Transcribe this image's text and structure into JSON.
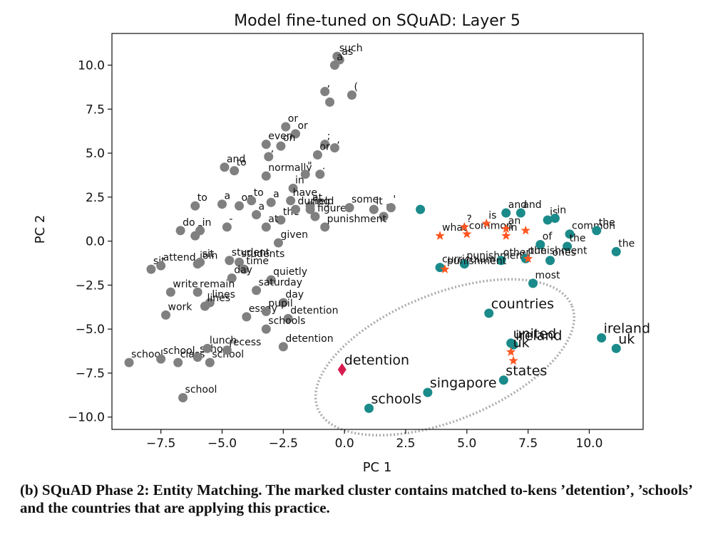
{
  "caption": "(b) SQuAD Phase 2: Entity Matching. The marked cluster contains matched to-kens ’detention’, ’schools’ and the countries that are applying this practice.",
  "chart_data": {
    "type": "scatter",
    "title": "Model fine-tuned on SQuAD: Layer 5",
    "xlabel": "PC 1",
    "ylabel": "PC 2",
    "xlim": [
      -9.5,
      12.2
    ],
    "ylim": [
      -10.7,
      11.8
    ],
    "xticks": [
      -7.5,
      -5.0,
      -2.5,
      0.0,
      2.5,
      5.0,
      7.5,
      10.0
    ],
    "xtick_labels": [
      "−7.5",
      "−5.0",
      "−2.5",
      "0.0",
      "2.5",
      "5.0",
      "7.5",
      "10.0"
    ],
    "yticks": [
      -10.0,
      -7.5,
      -5.0,
      -2.5,
      0.0,
      2.5,
      5.0,
      7.5,
      10.0
    ],
    "ytick_labels": [
      "−10.0",
      "−7.5",
      "−5.0",
      "−2.5",
      "0.0",
      "2.5",
      "5.0",
      "7.5",
      "10.0"
    ],
    "grid": false,
    "colors": {
      "other": "#808080",
      "context": "#1b8a8a",
      "question": "#ff5722",
      "answer": "#d81b4f",
      "ellipse": "#aaaaaa"
    },
    "series": [
      {
        "marker": "circle",
        "color": "#808080",
        "points": [
          {
            "x": -0.3,
            "y": 10.5,
            "label": "such"
          },
          {
            "x": -0.2,
            "y": 10.3,
            "label": "as"
          },
          {
            "x": -0.4,
            "y": 10.0,
            "label": "a"
          },
          {
            "x": -0.8,
            "y": 8.5,
            "label": ","
          },
          {
            "x": 0.3,
            "y": 8.3,
            "label": "("
          },
          {
            "x": -0.6,
            "y": 7.9,
            "label": ""
          },
          {
            "x": -2.4,
            "y": 6.5,
            "label": "or"
          },
          {
            "x": -2.0,
            "y": 6.1,
            "label": "or"
          },
          {
            "x": -3.2,
            "y": 5.5,
            "label": "even"
          },
          {
            "x": -2.6,
            "y": 5.4,
            "label": "on"
          },
          {
            "x": -0.8,
            "y": 5.5,
            "label": ";"
          },
          {
            "x": -1.1,
            "y": 4.9,
            "label": "or"
          },
          {
            "x": -0.4,
            "y": 5.3,
            "label": ","
          },
          {
            "x": -3.1,
            "y": 4.8,
            "label": ","
          },
          {
            "x": -4.9,
            "y": 4.2,
            "label": "and"
          },
          {
            "x": -4.5,
            "y": 4.0,
            "label": "to"
          },
          {
            "x": -3.2,
            "y": 3.7,
            "label": "normally"
          },
          {
            "x": -1.6,
            "y": 3.8,
            "label": "\""
          },
          {
            "x": -1.0,
            "y": 3.8,
            "label": "."
          },
          {
            "x": -2.1,
            "y": 3.0,
            "label": "in"
          },
          {
            "x": -6.1,
            "y": 2.0,
            "label": "to"
          },
          {
            "x": -5.0,
            "y": 2.1,
            "label": "a"
          },
          {
            "x": -4.3,
            "y": 2.0,
            "label": "on"
          },
          {
            "x": -3.8,
            "y": 2.3,
            "label": "to"
          },
          {
            "x": -3.0,
            "y": 2.2,
            "label": "a"
          },
          {
            "x": -2.2,
            "y": 2.3,
            "label": "have"
          },
          {
            "x": -1.4,
            "y": 2.0,
            "label": "at"
          },
          {
            "x": -3.6,
            "y": 1.5,
            "label": "a"
          },
          {
            "x": -2.6,
            "y": 1.2,
            "label": "the"
          },
          {
            "x": -1.4,
            "y": 1.8,
            "label": "held"
          },
          {
            "x": -2.0,
            "y": 1.8,
            "label": "during"
          },
          {
            "x": -1.2,
            "y": 1.4,
            "label": "figures"
          },
          {
            "x": 0.2,
            "y": 1.9,
            "label": "some"
          },
          {
            "x": 1.2,
            "y": 1.8,
            "label": "it"
          },
          {
            "x": 1.6,
            "y": 1.4,
            "label": "''"
          },
          {
            "x": 1.9,
            "y": 1.9,
            "label": "'"
          },
          {
            "x": -6.7,
            "y": 0.6,
            "label": "do"
          },
          {
            "x": -6.1,
            "y": 0.3,
            "label": "a"
          },
          {
            "x": -5.9,
            "y": 0.6,
            "label": "in"
          },
          {
            "x": -4.8,
            "y": 0.8,
            "label": "-"
          },
          {
            "x": -3.2,
            "y": 0.8,
            "label": "at"
          },
          {
            "x": -2.7,
            "y": -0.1,
            "label": "given"
          },
          {
            "x": -0.8,
            "y": 0.8,
            "label": "punishment"
          },
          {
            "x": -7.9,
            "y": -1.6,
            "label": "sit"
          },
          {
            "x": -7.5,
            "y": -1.4,
            "label": "attend"
          },
          {
            "x": -6.0,
            "y": -1.3,
            "label": "join"
          },
          {
            "x": -5.9,
            "y": -1.2,
            "label": "sit"
          },
          {
            "x": -4.7,
            "y": -1.1,
            "label": "student"
          },
          {
            "x": -4.3,
            "y": -1.2,
            "label": "students"
          },
          {
            "x": -4.1,
            "y": -1.6,
            "label": "time"
          },
          {
            "x": -4.6,
            "y": -2.1,
            "label": "day"
          },
          {
            "x": -3.0,
            "y": -2.2,
            "label": "quietly"
          },
          {
            "x": -3.6,
            "y": -2.8,
            "label": "saturday"
          },
          {
            "x": -7.1,
            "y": -2.9,
            "label": "write"
          },
          {
            "x": -6.0,
            "y": -2.9,
            "label": "remain"
          },
          {
            "x": -5.5,
            "y": -3.5,
            "label": "lines"
          },
          {
            "x": -2.5,
            "y": -3.5,
            "label": "day"
          },
          {
            "x": -7.3,
            "y": -4.2,
            "label": "work"
          },
          {
            "x": -5.7,
            "y": -3.7,
            "label": "lines"
          },
          {
            "x": -4.0,
            "y": -4.3,
            "label": "essay"
          },
          {
            "x": -3.2,
            "y": -4.0,
            "label": "pupil"
          },
          {
            "x": -2.3,
            "y": -4.4,
            "label": "detention"
          },
          {
            "x": -3.2,
            "y": -5.0,
            "label": "schools"
          },
          {
            "x": -8.8,
            "y": -6.9,
            "label": "school"
          },
          {
            "x": -7.5,
            "y": -6.7,
            "label": "school"
          },
          {
            "x": -6.8,
            "y": -6.9,
            "label": "class"
          },
          {
            "x": -6.0,
            "y": -6.6,
            "label": "school"
          },
          {
            "x": -5.5,
            "y": -6.9,
            "label": "school"
          },
          {
            "x": -5.6,
            "y": -6.1,
            "label": "lunch"
          },
          {
            "x": -4.8,
            "y": -6.2,
            "label": "recess"
          },
          {
            "x": -2.5,
            "y": -6.0,
            "label": "detention"
          },
          {
            "x": -6.6,
            "y": -8.9,
            "label": "school"
          }
        ]
      },
      {
        "marker": "circle",
        "color": "#1b8a8a",
        "points": [
          {
            "x": 3.1,
            "y": 1.8,
            "label": ""
          },
          {
            "x": 6.6,
            "y": 1.6,
            "label": "and"
          },
          {
            "x": 7.2,
            "y": 1.6,
            "label": "and"
          },
          {
            "x": 8.3,
            "y": 1.2,
            "label": "is"
          },
          {
            "x": 8.6,
            "y": 1.3,
            "label": "in"
          },
          {
            "x": 9.2,
            "y": 0.4,
            "label": "common"
          },
          {
            "x": 10.3,
            "y": 0.6,
            "label": "the"
          },
          {
            "x": 11.1,
            "y": -0.6,
            "label": "the"
          },
          {
            "x": 8.0,
            "y": -0.2,
            "label": "of"
          },
          {
            "x": 9.1,
            "y": -0.3,
            "label": "the"
          },
          {
            "x": 8.4,
            "y": -1.1,
            "label": "ones"
          },
          {
            "x": 7.7,
            "y": -2.4,
            "label": "most"
          },
          {
            "x": 3.9,
            "y": -1.5,
            "label": "curriculum"
          },
          {
            "x": 4.9,
            "y": -1.3,
            "label": "punishment"
          },
          {
            "x": 6.4,
            "y": -1.1,
            "label": "other"
          },
          {
            "x": 7.4,
            "y": -1.0,
            "label": "punishment"
          },
          {
            "x": 5.9,
            "y": -4.1,
            "label": "countries"
          },
          {
            "x": 6.8,
            "y": -5.8,
            "label": "united"
          },
          {
            "x": 6.9,
            "y": -5.9,
            "label": "ireland"
          },
          {
            "x": 6.5,
            "y": -7.9,
            "label": "states"
          },
          {
            "x": 3.4,
            "y": -8.6,
            "label": "singapore"
          },
          {
            "x": 1.0,
            "y": -9.5,
            "label": "schools"
          },
          {
            "x": 10.5,
            "y": -5.5,
            "label": "ireland"
          },
          {
            "x": 11.1,
            "y": -6.1,
            "label": "uk"
          }
        ]
      },
      {
        "marker": "star",
        "color": "#ff5722",
        "points": [
          {
            "x": 3.9,
            "y": 0.3,
            "label": "what"
          },
          {
            "x": 4.9,
            "y": 0.8,
            "label": "?"
          },
          {
            "x": 5.0,
            "y": 0.4,
            "label": "common"
          },
          {
            "x": 5.8,
            "y": 1.0,
            "label": "is"
          },
          {
            "x": 6.6,
            "y": 0.7,
            "label": "an"
          },
          {
            "x": 6.6,
            "y": 0.3,
            "label": "in"
          },
          {
            "x": 7.4,
            "y": 0.6,
            "label": ""
          },
          {
            "x": 7.5,
            "y": -1.0,
            "label": "the"
          },
          {
            "x": 4.1,
            "y": -1.6,
            "label": "punishment"
          },
          {
            "x": 6.8,
            "y": -6.3,
            "label": "uk"
          },
          {
            "x": 6.9,
            "y": -6.8,
            "label": ""
          }
        ]
      },
      {
        "marker": "diamond",
        "color": "#d81b4f",
        "points": [
          {
            "x": -0.1,
            "y": -7.3,
            "label": "detention"
          }
        ]
      }
    ],
    "highlighted_cluster": [
      "detention",
      "schools",
      "singapore",
      "states",
      "united",
      "ireland",
      "uk",
      "countries"
    ],
    "cluster_ellipse": {
      "cx": 4.1,
      "cy": -6.6,
      "rx": 5.6,
      "ry": 3.6,
      "angle_deg": -22
    }
  }
}
